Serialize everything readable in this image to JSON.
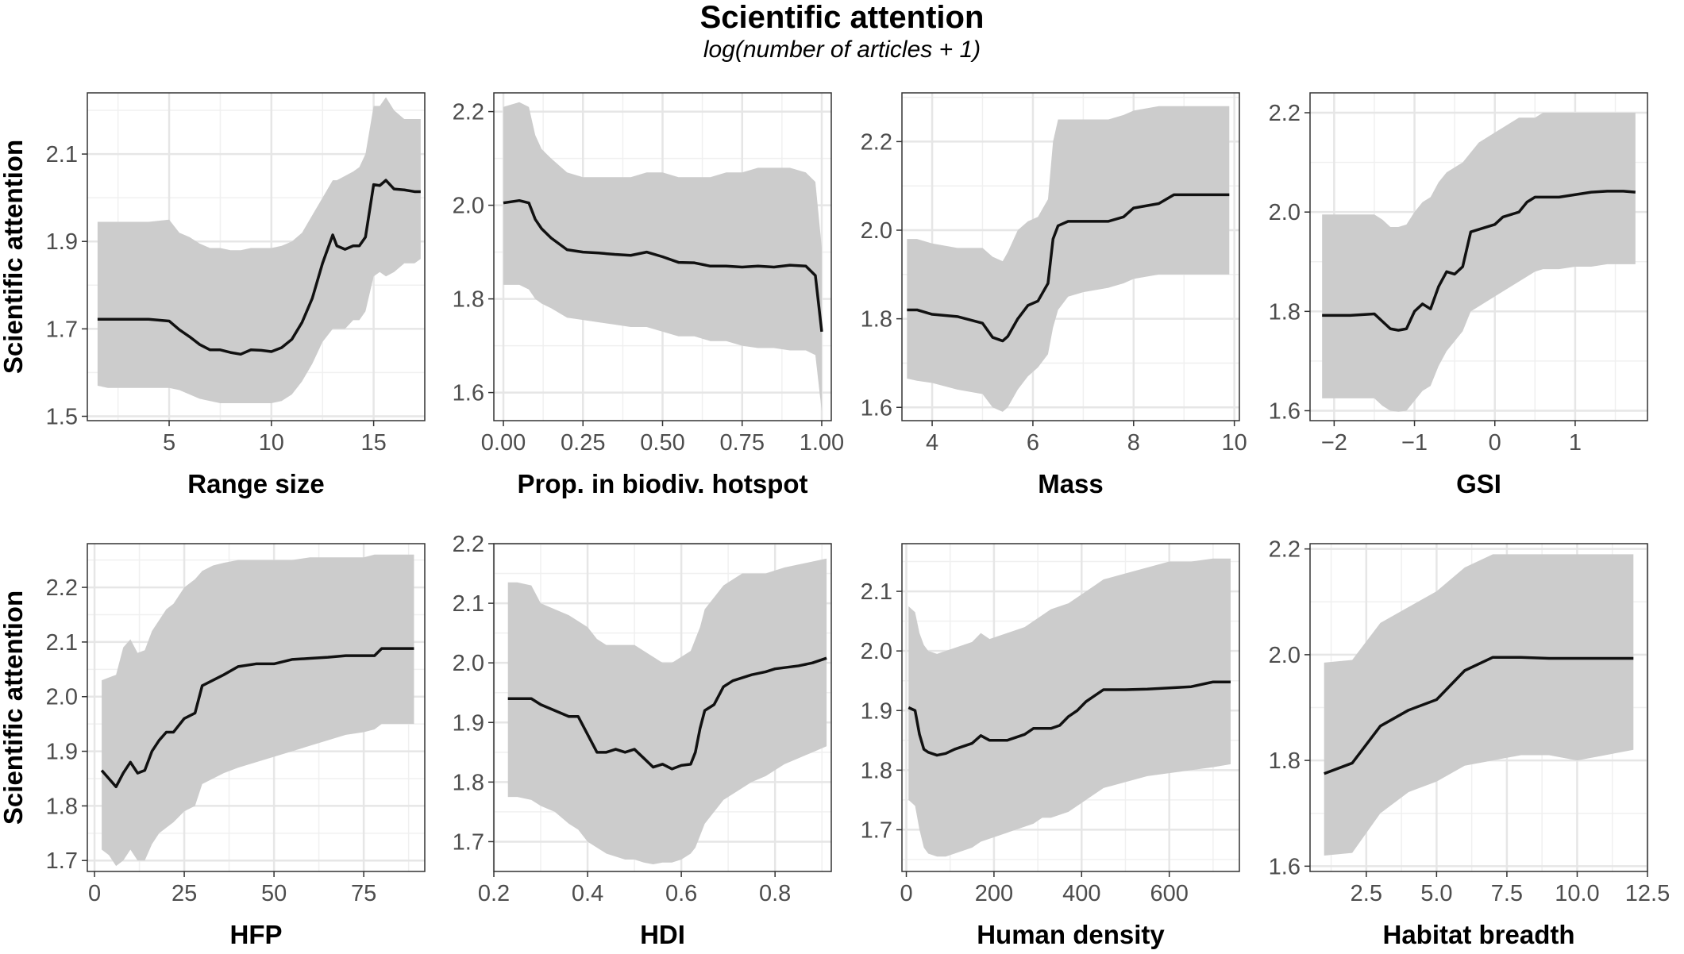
{
  "title": "Scientific attention",
  "subtitle": "log(number of articles + 1)",
  "y_axis_title": "Scientific attention",
  "chart_data": [
    {
      "type": "line",
      "xlabel": "Range size",
      "ylabel": "Scientific attention",
      "xlim": [
        1,
        17.5
      ],
      "ylim": [
        1.49,
        2.24
      ],
      "xticks": [
        5,
        10,
        15
      ],
      "yticks": [
        1.5,
        1.7,
        1.9,
        2.1
      ],
      "x": [
        1.5,
        2,
        3,
        4,
        5,
        5.5,
        6,
        6.5,
        7,
        7.5,
        8,
        8.5,
        9,
        9.5,
        10,
        10.5,
        11,
        11.5,
        12,
        12.5,
        13,
        13.2,
        13.6,
        14,
        14.3,
        14.6,
        15,
        15.3,
        15.6,
        16,
        16.5,
        17,
        17.3
      ],
      "y": [
        1.722,
        1.722,
        1.722,
        1.722,
        1.718,
        1.698,
        1.682,
        1.664,
        1.652,
        1.652,
        1.646,
        1.642,
        1.652,
        1.651,
        1.648,
        1.657,
        1.676,
        1.715,
        1.77,
        1.85,
        1.915,
        1.89,
        1.882,
        1.89,
        1.89,
        1.91,
        2.03,
        2.028,
        2.04,
        2.02,
        2.018,
        2.014,
        2.014
      ],
      "lower": [
        1.57,
        1.565,
        1.565,
        1.565,
        1.565,
        1.56,
        1.55,
        1.54,
        1.535,
        1.53,
        1.53,
        1.53,
        1.53,
        1.53,
        1.53,
        1.535,
        1.55,
        1.58,
        1.62,
        1.67,
        1.7,
        1.7,
        1.7,
        1.72,
        1.72,
        1.74,
        1.82,
        1.83,
        1.82,
        1.83,
        1.85,
        1.85,
        1.86
      ],
      "upper": [
        1.945,
        1.945,
        1.945,
        1.945,
        1.95,
        1.92,
        1.91,
        1.895,
        1.885,
        1.885,
        1.88,
        1.88,
        1.885,
        1.885,
        1.885,
        1.89,
        1.9,
        1.92,
        1.96,
        2.0,
        2.04,
        2.04,
        2.05,
        2.06,
        2.07,
        2.1,
        2.21,
        2.21,
        2.23,
        2.2,
        2.18,
        2.18,
        2.18
      ]
    },
    {
      "type": "line",
      "xlabel": "Prop. in biodiv. hotspot",
      "ylabel": "",
      "xlim": [
        -0.03,
        1.03
      ],
      "ylim": [
        1.54,
        2.24
      ],
      "xticks": [
        0.0,
        0.25,
        0.5,
        0.75,
        1.0
      ],
      "xtick_labels": [
        "0.00",
        "0.25",
        "0.50",
        "0.75",
        "1.00"
      ],
      "yticks": [
        1.6,
        1.8,
        2.0,
        2.2
      ],
      "x": [
        0.0,
        0.05,
        0.08,
        0.1,
        0.12,
        0.15,
        0.2,
        0.25,
        0.3,
        0.35,
        0.4,
        0.45,
        0.5,
        0.55,
        0.6,
        0.65,
        0.7,
        0.75,
        0.8,
        0.85,
        0.9,
        0.95,
        0.98,
        1.0
      ],
      "y": [
        2.005,
        2.01,
        2.005,
        1.97,
        1.95,
        1.93,
        1.905,
        1.9,
        1.898,
        1.895,
        1.893,
        1.9,
        1.89,
        1.878,
        1.877,
        1.87,
        1.87,
        1.868,
        1.87,
        1.868,
        1.872,
        1.87,
        1.85,
        1.73
      ],
      "lower": [
        1.83,
        1.83,
        1.82,
        1.8,
        1.79,
        1.78,
        1.76,
        1.755,
        1.75,
        1.745,
        1.74,
        1.74,
        1.73,
        1.72,
        1.72,
        1.71,
        1.71,
        1.7,
        1.695,
        1.695,
        1.69,
        1.69,
        1.68,
        1.56
      ],
      "upper": [
        2.21,
        2.22,
        2.21,
        2.15,
        2.12,
        2.1,
        2.07,
        2.06,
        2.06,
        2.06,
        2.06,
        2.07,
        2.07,
        2.06,
        2.06,
        2.06,
        2.07,
        2.07,
        2.08,
        2.08,
        2.08,
        2.07,
        2.05,
        1.91
      ]
    },
    {
      "type": "line",
      "xlabel": "Mass",
      "ylabel": "",
      "xlim": [
        3.4,
        10.1
      ],
      "ylim": [
        1.57,
        2.31
      ],
      "xticks": [
        4,
        6,
        8,
        10
      ],
      "yticks": [
        1.6,
        1.8,
        2.0,
        2.2
      ],
      "x": [
        3.5,
        3.7,
        4.0,
        4.5,
        5.0,
        5.2,
        5.4,
        5.5,
        5.7,
        5.9,
        6.1,
        6.3,
        6.4,
        6.5,
        6.7,
        7.0,
        7.5,
        7.8,
        8.0,
        8.5,
        8.8,
        9.0,
        9.5,
        9.9
      ],
      "y": [
        1.82,
        1.82,
        1.81,
        1.805,
        1.79,
        1.758,
        1.75,
        1.76,
        1.8,
        1.83,
        1.84,
        1.88,
        1.98,
        2.01,
        2.02,
        2.02,
        2.02,
        2.03,
        2.05,
        2.06,
        2.08,
        2.08,
        2.08,
        2.08
      ],
      "lower": [
        1.665,
        1.66,
        1.655,
        1.64,
        1.63,
        1.6,
        1.59,
        1.6,
        1.64,
        1.67,
        1.69,
        1.72,
        1.78,
        1.82,
        1.85,
        1.86,
        1.87,
        1.88,
        1.89,
        1.9,
        1.9,
        1.9,
        1.9,
        1.9
      ],
      "upper": [
        1.98,
        1.98,
        1.97,
        1.96,
        1.96,
        1.94,
        1.93,
        1.95,
        2.0,
        2.02,
        2.03,
        2.07,
        2.2,
        2.25,
        2.25,
        2.25,
        2.25,
        2.26,
        2.27,
        2.28,
        2.28,
        2.28,
        2.28,
        2.28
      ]
    },
    {
      "type": "line",
      "xlabel": "GSI",
      "ylabel": "",
      "xlim": [
        -2.3,
        1.9
      ],
      "ylim": [
        1.58,
        2.24
      ],
      "xticks": [
        -2,
        -1,
        0,
        1
      ],
      "xtick_labels": [
        "−2",
        "−1",
        "0",
        "1"
      ],
      "yticks": [
        1.6,
        1.8,
        2.0,
        2.2
      ],
      "x": [
        -2.15,
        -1.8,
        -1.5,
        -1.4,
        -1.3,
        -1.2,
        -1.1,
        -1.0,
        -0.9,
        -0.8,
        -0.7,
        -0.6,
        -0.5,
        -0.4,
        -0.3,
        -0.2,
        0.0,
        0.1,
        0.2,
        0.3,
        0.4,
        0.5,
        0.6,
        0.8,
        1.0,
        1.2,
        1.4,
        1.6,
        1.75
      ],
      "y": [
        1.792,
        1.792,
        1.795,
        1.78,
        1.765,
        1.762,
        1.765,
        1.8,
        1.815,
        1.805,
        1.85,
        1.88,
        1.875,
        1.89,
        1.96,
        1.965,
        1.975,
        1.99,
        1.995,
        2.0,
        2.02,
        2.03,
        2.03,
        2.03,
        2.035,
        2.04,
        2.042,
        2.042,
        2.04
      ],
      "lower": [
        1.625,
        1.625,
        1.625,
        1.61,
        1.6,
        1.598,
        1.6,
        1.62,
        1.64,
        1.65,
        1.69,
        1.72,
        1.74,
        1.76,
        1.8,
        1.81,
        1.83,
        1.84,
        1.85,
        1.86,
        1.87,
        1.88,
        1.885,
        1.885,
        1.89,
        1.89,
        1.895,
        1.895,
        1.895
      ],
      "upper": [
        1.995,
        1.995,
        1.995,
        1.985,
        1.97,
        1.97,
        1.975,
        2.0,
        2.02,
        2.03,
        2.06,
        2.08,
        2.09,
        2.1,
        2.12,
        2.14,
        2.16,
        2.17,
        2.18,
        2.19,
        2.19,
        2.19,
        2.2,
        2.2,
        2.2,
        2.2,
        2.2,
        2.2,
        2.2
      ]
    },
    {
      "type": "line",
      "xlabel": "HFP",
      "ylabel": "Scientific attention",
      "xlim": [
        -2,
        92
      ],
      "ylim": [
        1.68,
        2.28
      ],
      "xticks": [
        0,
        25,
        50,
        75
      ],
      "yticks": [
        1.7,
        1.8,
        1.9,
        2.0,
        2.1,
        2.2
      ],
      "x": [
        2,
        4,
        6,
        8,
        10,
        12,
        14,
        16,
        18,
        20,
        22,
        25,
        28,
        30,
        33,
        36,
        40,
        45,
        50,
        55,
        60,
        65,
        70,
        75,
        78,
        80,
        85,
        89
      ],
      "y": [
        1.865,
        1.85,
        1.835,
        1.86,
        1.88,
        1.86,
        1.865,
        1.9,
        1.92,
        1.935,
        1.935,
        1.96,
        1.97,
        2.02,
        2.03,
        2.04,
        2.055,
        2.06,
        2.06,
        2.068,
        2.07,
        2.072,
        2.075,
        2.075,
        2.075,
        2.088,
        2.088,
        2.088
      ],
      "lower": [
        1.72,
        1.71,
        1.69,
        1.7,
        1.72,
        1.7,
        1.7,
        1.73,
        1.75,
        1.76,
        1.77,
        1.79,
        1.8,
        1.84,
        1.85,
        1.86,
        1.87,
        1.88,
        1.89,
        1.9,
        1.91,
        1.92,
        1.93,
        1.935,
        1.94,
        1.95,
        1.95,
        1.95
      ],
      "upper": [
        2.03,
        2.035,
        2.04,
        2.09,
        2.105,
        2.08,
        2.085,
        2.12,
        2.14,
        2.16,
        2.17,
        2.2,
        2.215,
        2.23,
        2.24,
        2.245,
        2.25,
        2.25,
        2.25,
        2.25,
        2.255,
        2.255,
        2.255,
        2.255,
        2.26,
        2.26,
        2.26,
        2.26
      ]
    },
    {
      "type": "line",
      "xlabel": "HDI",
      "ylabel": "",
      "xlim": [
        0.2,
        0.92
      ],
      "ylim": [
        1.65,
        2.2
      ],
      "xticks": [
        0.2,
        0.4,
        0.6,
        0.8
      ],
      "xtick_labels": [
        "0.2",
        "0.4",
        "0.6",
        "0.8"
      ],
      "yticks": [
        1.7,
        1.8,
        1.9,
        2.0,
        2.1,
        2.2
      ],
      "x": [
        0.23,
        0.25,
        0.28,
        0.3,
        0.33,
        0.36,
        0.38,
        0.4,
        0.42,
        0.44,
        0.46,
        0.48,
        0.5,
        0.52,
        0.54,
        0.56,
        0.58,
        0.6,
        0.62,
        0.63,
        0.64,
        0.65,
        0.67,
        0.69,
        0.71,
        0.73,
        0.75,
        0.78,
        0.8,
        0.82,
        0.85,
        0.88,
        0.91
      ],
      "y": [
        1.94,
        1.94,
        1.94,
        1.93,
        1.92,
        1.91,
        1.91,
        1.88,
        1.85,
        1.85,
        1.855,
        1.85,
        1.855,
        1.84,
        1.825,
        1.83,
        1.822,
        1.828,
        1.83,
        1.85,
        1.89,
        1.92,
        1.93,
        1.96,
        1.97,
        1.975,
        1.98,
        1.985,
        1.99,
        1.992,
        1.995,
        2.0,
        2.008
      ],
      "lower": [
        1.775,
        1.775,
        1.77,
        1.76,
        1.75,
        1.73,
        1.72,
        1.7,
        1.69,
        1.68,
        1.675,
        1.67,
        1.67,
        1.665,
        1.662,
        1.665,
        1.665,
        1.67,
        1.68,
        1.69,
        1.71,
        1.73,
        1.75,
        1.77,
        1.78,
        1.79,
        1.8,
        1.81,
        1.82,
        1.83,
        1.84,
        1.85,
        1.86
      ],
      "upper": [
        2.135,
        2.135,
        2.13,
        2.1,
        2.09,
        2.08,
        2.07,
        2.06,
        2.04,
        2.03,
        2.03,
        2.03,
        2.03,
        2.02,
        2.01,
        2.0,
        2.0,
        2.01,
        2.02,
        2.04,
        2.06,
        2.09,
        2.11,
        2.13,
        2.14,
        2.15,
        2.15,
        2.15,
        2.155,
        2.16,
        2.165,
        2.17,
        2.175
      ]
    },
    {
      "type": "line",
      "xlabel": "Human density",
      "ylabel": "",
      "xlim": [
        -10,
        760
      ],
      "ylim": [
        1.63,
        2.18
      ],
      "xticks": [
        0,
        200,
        400,
        600
      ],
      "yticks": [
        1.7,
        1.8,
        1.9,
        2.0,
        2.1
      ],
      "x": [
        5,
        20,
        30,
        40,
        50,
        70,
        90,
        110,
        130,
        150,
        170,
        190,
        210,
        230,
        250,
        270,
        290,
        310,
        330,
        350,
        370,
        390,
        410,
        430,
        450,
        500,
        550,
        600,
        650,
        700,
        740
      ],
      "y": [
        1.905,
        1.9,
        1.86,
        1.835,
        1.83,
        1.825,
        1.828,
        1.835,
        1.84,
        1.845,
        1.858,
        1.85,
        1.85,
        1.85,
        1.855,
        1.86,
        1.87,
        1.87,
        1.87,
        1.875,
        1.89,
        1.9,
        1.915,
        1.925,
        1.935,
        1.935,
        1.936,
        1.938,
        1.94,
        1.948,
        1.948
      ],
      "lower": [
        1.75,
        1.74,
        1.7,
        1.67,
        1.66,
        1.655,
        1.655,
        1.66,
        1.665,
        1.67,
        1.68,
        1.685,
        1.69,
        1.695,
        1.7,
        1.705,
        1.71,
        1.72,
        1.72,
        1.725,
        1.73,
        1.74,
        1.75,
        1.76,
        1.77,
        1.78,
        1.79,
        1.795,
        1.8,
        1.805,
        1.81
      ],
      "upper": [
        2.075,
        2.065,
        2.03,
        2.01,
        2.0,
        1.995,
        2.0,
        2.005,
        2.01,
        2.015,
        2.03,
        2.02,
        2.025,
        2.03,
        2.035,
        2.04,
        2.05,
        2.06,
        2.07,
        2.075,
        2.08,
        2.09,
        2.1,
        2.11,
        2.12,
        2.13,
        2.14,
        2.15,
        2.15,
        2.155,
        2.155
      ]
    },
    {
      "type": "line",
      "xlabel": "Habitat breadth",
      "ylabel": "",
      "xlim": [
        0.5,
        12.5
      ],
      "ylim": [
        1.59,
        2.21
      ],
      "xticks": [
        2.5,
        5.0,
        7.5,
        10.0,
        12.5
      ],
      "xtick_labels": [
        "2.5",
        "5.0",
        "7.5",
        "10.0",
        "12.5"
      ],
      "yticks": [
        1.6,
        1.8,
        2.0,
        2.2
      ],
      "x": [
        1,
        2,
        3,
        4,
        5,
        6,
        7,
        8,
        9,
        10,
        11,
        12
      ],
      "y": [
        1.775,
        1.795,
        1.865,
        1.895,
        1.915,
        1.97,
        1.995,
        1.995,
        1.993,
        1.993,
        1.993,
        1.993
      ],
      "lower": [
        1.62,
        1.625,
        1.7,
        1.74,
        1.76,
        1.79,
        1.8,
        1.81,
        1.81,
        1.8,
        1.81,
        1.82
      ],
      "upper": [
        1.985,
        1.99,
        2.06,
        2.09,
        2.12,
        2.165,
        2.19,
        2.19,
        2.19,
        2.19,
        2.19,
        2.19
      ]
    }
  ]
}
